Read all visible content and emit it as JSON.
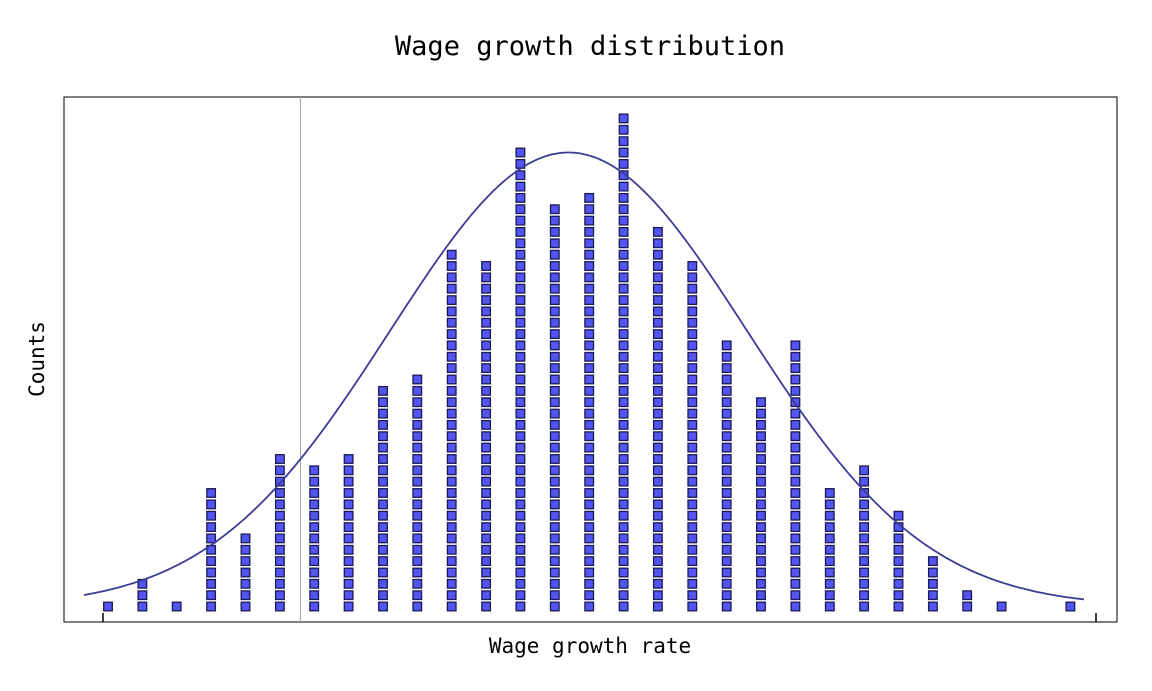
{
  "chart_data": {
    "type": "dot-histogram",
    "title": "Wage growth distribution",
    "xlabel": "Wage growth rate",
    "ylabel": "Counts",
    "bin_counts": [
      1,
      3,
      1,
      11,
      7,
      14,
      13,
      14,
      20,
      21,
      32,
      31,
      41,
      36,
      37,
      44,
      34,
      31,
      24,
      19,
      24,
      11,
      13,
      9,
      5,
      2,
      1,
      0,
      1
    ],
    "count_range": [
      0,
      45
    ],
    "x_ticks_labeled": false,
    "y_ticks_labeled": false,
    "reference_line_bin": 5.6,
    "fit_curve": {
      "type": "normal",
      "peak_bin": 13.4,
      "sd_bins": 5.2,
      "peak_count": 40.0
    },
    "grid": false,
    "legend": "none",
    "colors": {
      "dot_fill": "#5454f0",
      "dot_edge": "#1a1a55",
      "curve": "#3c3c96",
      "refline": "#a6a6a6",
      "frame": "#000000"
    }
  }
}
